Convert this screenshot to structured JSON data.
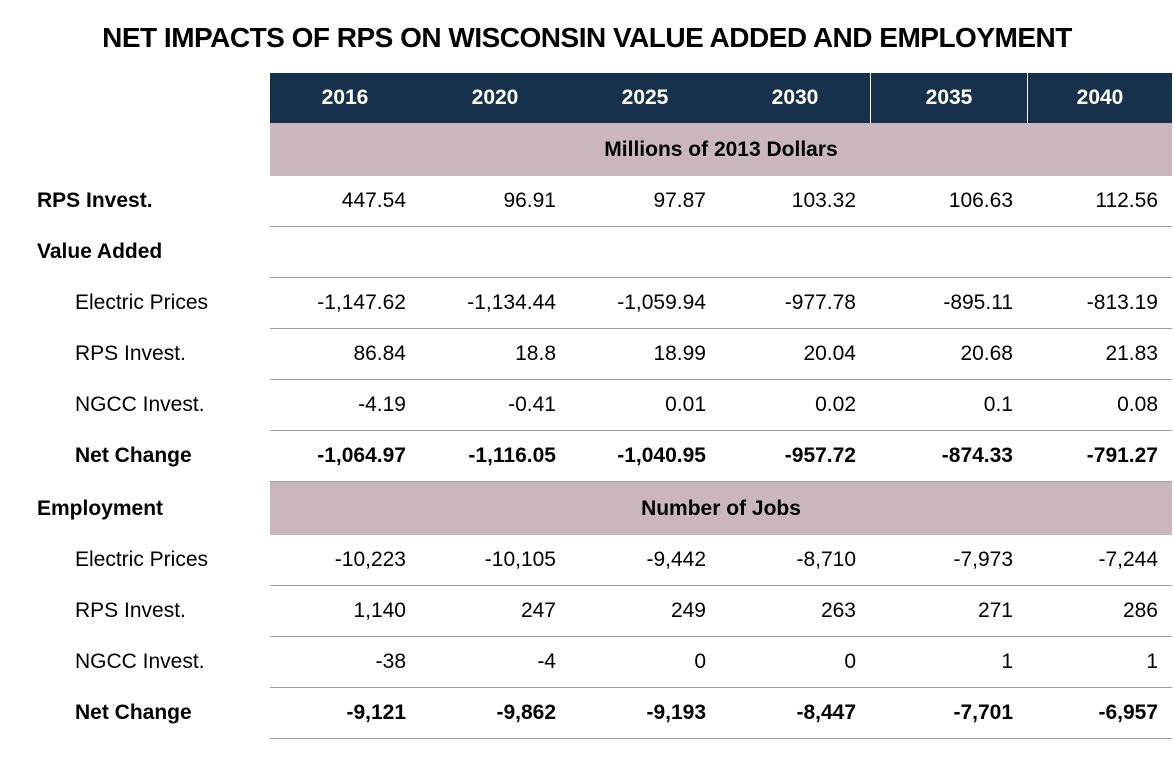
{
  "title": "NET IMPACTS OF RPS ON WISCONSIN VALUE ADDED AND EMPLOYMENT",
  "colors": {
    "header_bg": "#17304c",
    "band_bg": "#c9b7bd",
    "grid_line": "#9c9c9c",
    "header_text": "#ffffff",
    "body_text": "#000000",
    "background": "#ffffff"
  },
  "table": {
    "years": [
      "2016",
      "2020",
      "2025",
      "2030",
      "2035",
      "2040"
    ],
    "band1_label": "Millions of 2013 Dollars",
    "band2_label": "Number of Jobs",
    "employment_label": "Employment",
    "rows": [
      {
        "label": "RPS Invest.",
        "values": [
          "447.54",
          "96.91",
          "97.87",
          "103.32",
          "106.63",
          "112.56"
        ]
      },
      {
        "label": "Value Added",
        "values": [
          "",
          "",
          "",
          "",
          "",
          ""
        ]
      },
      {
        "label": "Electric Prices",
        "values": [
          "-1,147.62",
          "-1,134.44",
          "-1,059.94",
          "-977.78",
          "-895.11",
          "-813.19"
        ]
      },
      {
        "label": "RPS Invest.",
        "values": [
          "86.84",
          "18.8",
          "18.99",
          "20.04",
          "20.68",
          "21.83"
        ]
      },
      {
        "label": "NGCC Invest.",
        "values": [
          "-4.19",
          "-0.41",
          "0.01",
          "0.02",
          "0.1",
          "0.08"
        ]
      },
      {
        "label": "Net Change",
        "values": [
          "-1,064.97",
          "-1,116.05",
          "-1,040.95",
          "-957.72",
          "-874.33",
          "-791.27"
        ]
      },
      {
        "label": "Electric Prices",
        "values": [
          "-10,223",
          "-10,105",
          "-9,442",
          "-8,710",
          "-7,973",
          "-7,244"
        ]
      },
      {
        "label": "RPS Invest.",
        "values": [
          "1,140",
          "247",
          "249",
          "263",
          "271",
          "286"
        ]
      },
      {
        "label": "NGCC Invest.",
        "values": [
          "-38",
          "-4",
          "0",
          "0",
          "1",
          "1"
        ]
      },
      {
        "label": "Net Change",
        "values": [
          "-9,121",
          "-9,862",
          "-9,193",
          "-8,447",
          "-7,701",
          "-6,957"
        ]
      }
    ]
  },
  "chart_data": {
    "type": "table",
    "title": "NET IMPACTS OF RPS ON WISCONSIN VALUE ADDED AND EMPLOYMENT",
    "columns": [
      "2016",
      "2020",
      "2025",
      "2030",
      "2035",
      "2040"
    ],
    "sections": [
      {
        "units": "Millions of 2013 Dollars",
        "rows": [
          {
            "label": "RPS Invest.",
            "group": null,
            "values": [
              447.54,
              96.91,
              97.87,
              103.32,
              106.63,
              112.56
            ]
          },
          {
            "label": "Electric Prices",
            "group": "Value Added",
            "values": [
              -1147.62,
              -1134.44,
              -1059.94,
              -977.78,
              -895.11,
              -813.19
            ]
          },
          {
            "label": "RPS Invest.",
            "group": "Value Added",
            "values": [
              86.84,
              18.8,
              18.99,
              20.04,
              20.68,
              21.83
            ]
          },
          {
            "label": "NGCC Invest.",
            "group": "Value Added",
            "values": [
              -4.19,
              -0.41,
              0.01,
              0.02,
              0.1,
              0.08
            ]
          },
          {
            "label": "Net Change",
            "group": "Value Added",
            "values": [
              -1064.97,
              -1116.05,
              -1040.95,
              -957.72,
              -874.33,
              -791.27
            ]
          }
        ]
      },
      {
        "units": "Number of Jobs",
        "rows": [
          {
            "label": "Electric Prices",
            "group": "Employment",
            "values": [
              -10223,
              -10105,
              -9442,
              -8710,
              -7973,
              -7244
            ]
          },
          {
            "label": "RPS Invest.",
            "group": "Employment",
            "values": [
              1140,
              247,
              249,
              263,
              271,
              286
            ]
          },
          {
            "label": "NGCC Invest.",
            "group": "Employment",
            "values": [
              -38,
              -4,
              0,
              0,
              1,
              1
            ]
          },
          {
            "label": "Net Change",
            "group": "Employment",
            "values": [
              -9121,
              -9862,
              -9193,
              -8447,
              -7701,
              -6957
            ]
          }
        ]
      }
    ]
  }
}
